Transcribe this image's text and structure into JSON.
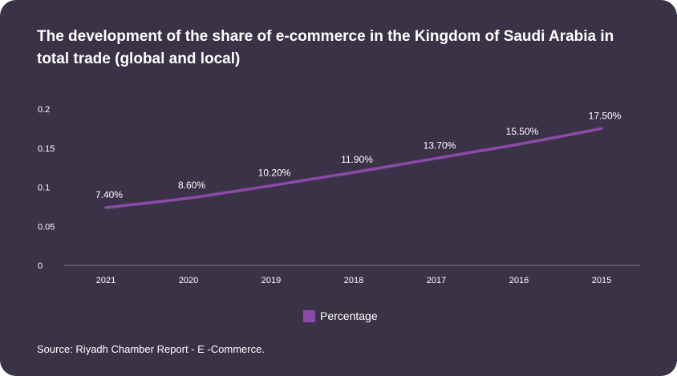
{
  "colors": {
    "background": "#3a3347",
    "line": "#8b4aa8",
    "text": "#ffffff",
    "axis": "#7c7588"
  },
  "chart_data": {
    "type": "line",
    "title": "The development of the share of e-commerce in the Kingdom of Saudi Arabia in total trade (global and local)",
    "categories": [
      "2021",
      "2020",
      "2019",
      "2018",
      "2017",
      "2016",
      "2015"
    ],
    "series": [
      {
        "name": "Percentage",
        "values": [
          0.074,
          0.086,
          0.102,
          0.119,
          0.137,
          0.155,
          0.175
        ],
        "data_labels": [
          "7.40%",
          "8.60%",
          "10.20%",
          "11.90%",
          "13.70%",
          "15.50%",
          "17.50%"
        ]
      }
    ],
    "y_ticks": [
      "0",
      "0.05",
      "0.1",
      "0.15",
      "0.2"
    ],
    "ylim": [
      0,
      0.2
    ],
    "xlabel": "",
    "ylabel": "",
    "grid": false,
    "legend": "bottom-center"
  },
  "source": "Source: Riyadh Chamber Report - E -Commerce."
}
